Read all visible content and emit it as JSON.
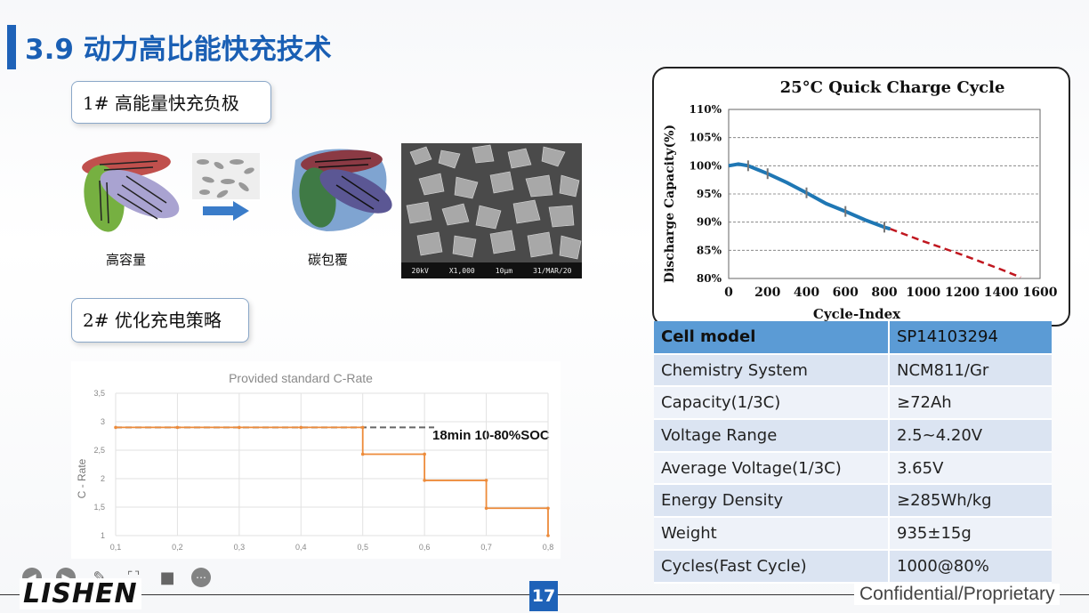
{
  "title": "3.9 动力高比能快充技术",
  "section1": {
    "label": "1#  高能量快充负极"
  },
  "section2": {
    "label": "2#  优化充电策略"
  },
  "captions": {
    "high_capacity": "高容量",
    "carbon_coating": "碳包覆"
  },
  "sem": {
    "footer": [
      "20kV",
      "X1,000",
      "10μm",
      "31/MAR/20"
    ]
  },
  "cycle_chart": {
    "title": "25°C Quick Charge Cycle",
    "xlabel": "Cycle-Index",
    "ylabel": "Discharge Capacity(%)"
  },
  "crate_chart": {
    "title": "Provided standard C-Rate",
    "ylabel": "C - Rate",
    "annotation": "18min 10-80%SOC"
  },
  "chart_data": [
    {
      "type": "line",
      "title": "25°C Quick Charge Cycle",
      "xlabel": "Cycle-Index",
      "ylabel": "Discharge Capacity(%)",
      "xlim": [
        0,
        1600
      ],
      "ylim": [
        80,
        110
      ],
      "x_ticks": [
        "0",
        "200",
        "400",
        "600",
        "800",
        "1000",
        "1200",
        "1400",
        "1600"
      ],
      "y_ticks": [
        "80%",
        "85%",
        "90%",
        "95%",
        "100%",
        "105%",
        "110%"
      ],
      "grid": "horizontal dashed",
      "series": [
        {
          "x": [
            0,
            50,
            100,
            150,
            200,
            300,
            400,
            500,
            600,
            700,
            800,
            830
          ],
          "y": [
            100,
            100.3,
            100,
            99.3,
            98.6,
            97,
            95.2,
            93.3,
            91.9,
            90.4,
            89.1,
            88.8
          ]
        },
        {
          "x": [
            830,
            1000,
            1200,
            1400,
            1500
          ],
          "y": [
            88.8,
            86.6,
            84.2,
            81.6,
            80.2
          ],
          "style": "dashed red"
        }
      ]
    },
    {
      "type": "line",
      "title": "Provided standard C-Rate",
      "ylabel": "C - Rate",
      "ylim": [
        1,
        3.5
      ],
      "x_ticks": [
        "0,1",
        "0,2",
        "0,3",
        "0,4",
        "0,5",
        "0,6",
        "0,7",
        "0,8"
      ],
      "y_ticks": [
        "1",
        "1,5",
        "2",
        "2,5",
        "3",
        "3,5"
      ],
      "series": [
        {
          "x": [
            0.1,
            0.2,
            0.3,
            0.4,
            0.5,
            0.5,
            0.6,
            0.6,
            0.7,
            0.7,
            0.8,
            0.8
          ],
          "y": [
            2.9,
            2.9,
            2.9,
            2.9,
            2.9,
            2.43,
            2.43,
            1.97,
            1.97,
            1.48,
            1.48,
            1.0
          ],
          "style": "step orange"
        }
      ],
      "reference_line": {
        "y": 2.9,
        "style": "dashed gray"
      },
      "annotation": "18min 10-80%SOC"
    }
  ],
  "spec_table": [
    [
      "Cell model",
      "SP14103294"
    ],
    [
      "Chemistry System",
      "NCM811/Gr"
    ],
    [
      "Capacity(1/3C)",
      "≥72Ah"
    ],
    [
      "Voltage Range",
      "2.5~4.20V"
    ],
    [
      "Average Voltage(1/3C)",
      "3.65V"
    ],
    [
      "Energy Density",
      "≥285Wh/kg"
    ],
    [
      "Weight",
      "935±15g"
    ],
    [
      "Cycles(Fast Cycle)",
      "1000@80%"
    ]
  ],
  "footer": {
    "logo": "LISHEN",
    "page": "17",
    "confidential": "Confidential/Proprietary"
  },
  "toolbar": {
    "icons": [
      "back-icon",
      "forward-icon",
      "pen-icon",
      "focus-icon",
      "camera-icon",
      "more-icon"
    ]
  }
}
